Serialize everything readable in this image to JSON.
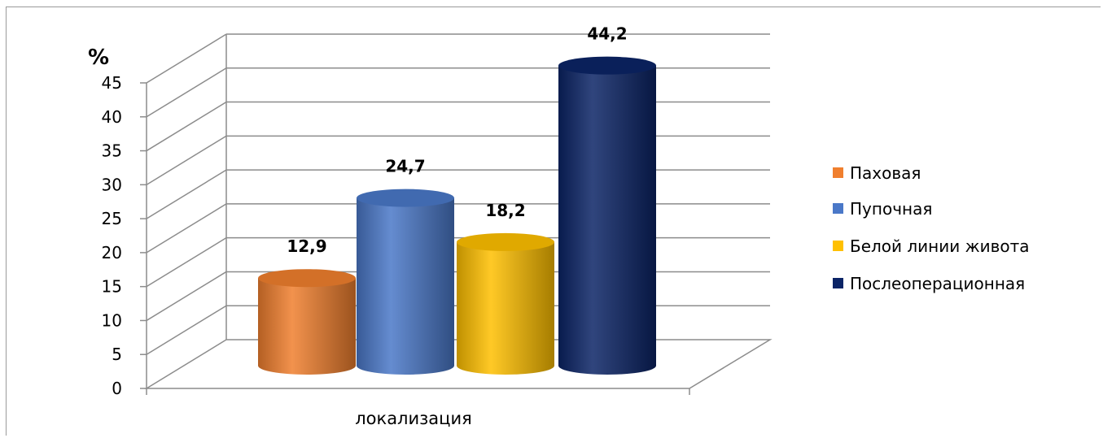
{
  "chart_data": {
    "type": "bar",
    "title": "",
    "xlabel": "локализация",
    "ylabel": "%",
    "ylim": [
      0,
      45
    ],
    "yticks": [
      "0",
      "5",
      "10",
      "15",
      "20",
      "25",
      "30",
      "35",
      "40",
      "45"
    ],
    "grid": true,
    "legend_position": "right",
    "categories": [
      "локализация"
    ],
    "series": [
      {
        "name": "Паховая",
        "values": [
          12.9
        ],
        "label": "12,9",
        "color": "#f07f2e"
      },
      {
        "name": "Пупочная",
        "values": [
          24.7
        ],
        "label": "24,7",
        "color": "#4a78c8"
      },
      {
        "name": "Белой линии живота",
        "values": [
          18.2
        ],
        "label": "18,2",
        "color": "#ffc000"
      },
      {
        "name": "Послеоперационная",
        "values": [
          44.2
        ],
        "label": "44,2",
        "color": "#0b2466"
      }
    ]
  }
}
